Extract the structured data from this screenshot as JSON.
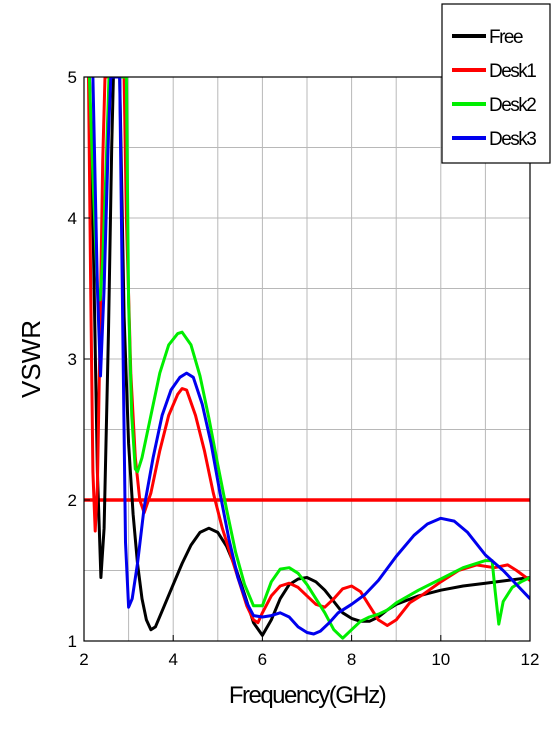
{
  "chart_data": {
    "type": "line",
    "title": "",
    "xlabel": "Frequency(GHz)",
    "ylabel": "VSWR",
    "xlim": [
      2,
      12
    ],
    "ylim": [
      1,
      5
    ],
    "xticks": [
      "2",
      "4",
      "6",
      "8",
      "10",
      "12"
    ],
    "yticks": [
      "1",
      "2",
      "3",
      "4",
      "5"
    ],
    "grid": true,
    "legend_position": "top-right",
    "series": [
      {
        "name": "Free",
        "color": "#000000",
        "points": [
          [
            2.12,
            5
          ],
          [
            2.2,
            4.0
          ],
          [
            2.3,
            2.2
          ],
          [
            2.38,
            1.45
          ],
          [
            2.45,
            1.8
          ],
          [
            2.55,
            3.2
          ],
          [
            2.62,
            4.5
          ],
          [
            2.66,
            5
          ],
          [
            2.8,
            5
          ],
          [
            2.9,
            3.3
          ],
          [
            3.0,
            2.4
          ],
          [
            3.1,
            1.9
          ],
          [
            3.2,
            1.55
          ],
          [
            3.3,
            1.3
          ],
          [
            3.4,
            1.15
          ],
          [
            3.5,
            1.08
          ],
          [
            3.6,
            1.1
          ],
          [
            3.8,
            1.25
          ],
          [
            4.0,
            1.4
          ],
          [
            4.2,
            1.55
          ],
          [
            4.4,
            1.68
          ],
          [
            4.6,
            1.77
          ],
          [
            4.8,
            1.8
          ],
          [
            5.0,
            1.77
          ],
          [
            5.2,
            1.67
          ],
          [
            5.4,
            1.52
          ],
          [
            5.6,
            1.33
          ],
          [
            5.8,
            1.13
          ],
          [
            6.0,
            1.04
          ],
          [
            6.2,
            1.15
          ],
          [
            6.4,
            1.3
          ],
          [
            6.6,
            1.4
          ],
          [
            6.8,
            1.44
          ],
          [
            7.0,
            1.45
          ],
          [
            7.2,
            1.42
          ],
          [
            7.4,
            1.36
          ],
          [
            7.6,
            1.28
          ],
          [
            7.8,
            1.2
          ],
          [
            8.0,
            1.16
          ],
          [
            8.2,
            1.14
          ],
          [
            8.4,
            1.14
          ],
          [
            8.6,
            1.17
          ],
          [
            8.8,
            1.22
          ],
          [
            9.0,
            1.26
          ],
          [
            9.5,
            1.32
          ],
          [
            10.0,
            1.36
          ],
          [
            10.5,
            1.39
          ],
          [
            11.0,
            1.41
          ],
          [
            11.5,
            1.43
          ],
          [
            12.0,
            1.45
          ]
        ]
      },
      {
        "name": "Desk1",
        "color": "#ff0000",
        "points": [
          [
            2.1,
            5
          ],
          [
            2.15,
            3.5
          ],
          [
            2.2,
            2.2
          ],
          [
            2.25,
            1.78
          ],
          [
            2.3,
            2.1
          ],
          [
            2.36,
            3.2
          ],
          [
            2.42,
            4.4
          ],
          [
            2.47,
            5
          ],
          [
            2.9,
            5
          ],
          [
            2.95,
            4.0
          ],
          [
            3.05,
            2.9
          ],
          [
            3.15,
            2.3
          ],
          [
            3.25,
            2.0
          ],
          [
            3.35,
            1.91
          ],
          [
            3.5,
            2.05
          ],
          [
            3.7,
            2.35
          ],
          [
            3.9,
            2.6
          ],
          [
            4.1,
            2.75
          ],
          [
            4.2,
            2.79
          ],
          [
            4.3,
            2.78
          ],
          [
            4.5,
            2.6
          ],
          [
            4.7,
            2.35
          ],
          [
            4.9,
            2.05
          ],
          [
            5.1,
            1.8
          ],
          [
            5.3,
            1.6
          ],
          [
            5.5,
            1.4
          ],
          [
            5.65,
            1.25
          ],
          [
            5.8,
            1.15
          ],
          [
            5.9,
            1.13
          ],
          [
            6.0,
            1.2
          ],
          [
            6.2,
            1.32
          ],
          [
            6.4,
            1.39
          ],
          [
            6.6,
            1.41
          ],
          [
            6.8,
            1.38
          ],
          [
            7.0,
            1.32
          ],
          [
            7.2,
            1.26
          ],
          [
            7.4,
            1.24
          ],
          [
            7.6,
            1.3
          ],
          [
            7.8,
            1.37
          ],
          [
            8.0,
            1.39
          ],
          [
            8.2,
            1.35
          ],
          [
            8.4,
            1.25
          ],
          [
            8.6,
            1.15
          ],
          [
            8.8,
            1.11
          ],
          [
            9.0,
            1.15
          ],
          [
            9.3,
            1.27
          ],
          [
            9.6,
            1.33
          ],
          [
            10.0,
            1.42
          ],
          [
            10.4,
            1.5
          ],
          [
            10.8,
            1.54
          ],
          [
            11.2,
            1.52
          ],
          [
            11.5,
            1.54
          ],
          [
            11.7,
            1.5
          ],
          [
            12.0,
            1.43
          ]
        ]
      },
      {
        "name": "Desk2",
        "color": "#00ee00",
        "points": [
          [
            2.12,
            5
          ],
          [
            2.2,
            4.3
          ],
          [
            2.3,
            3.5
          ],
          [
            2.36,
            3.42
          ],
          [
            2.42,
            3.7
          ],
          [
            2.5,
            4.4
          ],
          [
            2.56,
            5
          ],
          [
            2.95,
            5
          ],
          [
            3.0,
            3.4
          ],
          [
            3.07,
            2.6
          ],
          [
            3.15,
            2.22
          ],
          [
            3.2,
            2.2
          ],
          [
            3.3,
            2.3
          ],
          [
            3.5,
            2.6
          ],
          [
            3.7,
            2.9
          ],
          [
            3.9,
            3.1
          ],
          [
            4.1,
            3.18
          ],
          [
            4.2,
            3.19
          ],
          [
            4.4,
            3.1
          ],
          [
            4.6,
            2.88
          ],
          [
            4.8,
            2.58
          ],
          [
            5.0,
            2.25
          ],
          [
            5.2,
            1.93
          ],
          [
            5.4,
            1.63
          ],
          [
            5.6,
            1.4
          ],
          [
            5.8,
            1.25
          ],
          [
            6.0,
            1.25
          ],
          [
            6.2,
            1.42
          ],
          [
            6.4,
            1.51
          ],
          [
            6.6,
            1.52
          ],
          [
            6.8,
            1.48
          ],
          [
            7.0,
            1.4
          ],
          [
            7.2,
            1.3
          ],
          [
            7.4,
            1.2
          ],
          [
            7.6,
            1.08
          ],
          [
            7.8,
            1.02
          ],
          [
            8.0,
            1.08
          ],
          [
            8.2,
            1.14
          ],
          [
            8.4,
            1.17
          ],
          [
            8.6,
            1.19
          ],
          [
            8.8,
            1.22
          ],
          [
            9.0,
            1.27
          ],
          [
            9.5,
            1.36
          ],
          [
            10.0,
            1.44
          ],
          [
            10.5,
            1.52
          ],
          [
            11.0,
            1.57
          ],
          [
            11.15,
            1.57
          ],
          [
            11.22,
            1.35
          ],
          [
            11.3,
            1.12
          ],
          [
            11.4,
            1.28
          ],
          [
            11.6,
            1.38
          ],
          [
            11.8,
            1.42
          ],
          [
            12.0,
            1.45
          ]
        ]
      },
      {
        "name": "Desk3",
        "color": "#0000ee",
        "points": [
          [
            2.2,
            5
          ],
          [
            2.3,
            3.5
          ],
          [
            2.37,
            2.88
          ],
          [
            2.45,
            3.5
          ],
          [
            2.55,
            4.6
          ],
          [
            2.6,
            5
          ],
          [
            2.8,
            5
          ],
          [
            2.87,
            3.2
          ],
          [
            2.93,
            1.7
          ],
          [
            3.0,
            1.24
          ],
          [
            3.08,
            1.3
          ],
          [
            3.2,
            1.55
          ],
          [
            3.35,
            1.95
          ],
          [
            3.55,
            2.3
          ],
          [
            3.75,
            2.6
          ],
          [
            3.95,
            2.78
          ],
          [
            4.15,
            2.87
          ],
          [
            4.3,
            2.9
          ],
          [
            4.45,
            2.87
          ],
          [
            4.65,
            2.68
          ],
          [
            4.85,
            2.4
          ],
          [
            5.05,
            2.05
          ],
          [
            5.25,
            1.72
          ],
          [
            5.45,
            1.45
          ],
          [
            5.65,
            1.27
          ],
          [
            5.8,
            1.18
          ],
          [
            6.0,
            1.17
          ],
          [
            6.2,
            1.18
          ],
          [
            6.4,
            1.2
          ],
          [
            6.6,
            1.17
          ],
          [
            6.8,
            1.1
          ],
          [
            7.0,
            1.06
          ],
          [
            7.15,
            1.05
          ],
          [
            7.3,
            1.07
          ],
          [
            7.5,
            1.13
          ],
          [
            7.7,
            1.2
          ],
          [
            8.0,
            1.26
          ],
          [
            8.3,
            1.33
          ],
          [
            8.6,
            1.43
          ],
          [
            9.0,
            1.6
          ],
          [
            9.4,
            1.75
          ],
          [
            9.7,
            1.83
          ],
          [
            10.0,
            1.87
          ],
          [
            10.3,
            1.85
          ],
          [
            10.6,
            1.77
          ],
          [
            11.0,
            1.61
          ],
          [
            11.4,
            1.5
          ],
          [
            11.7,
            1.4
          ],
          [
            12.0,
            1.3
          ]
        ]
      }
    ],
    "reference_lines": [
      {
        "axis": "y",
        "value": 2,
        "color": "#ff0000"
      }
    ]
  }
}
